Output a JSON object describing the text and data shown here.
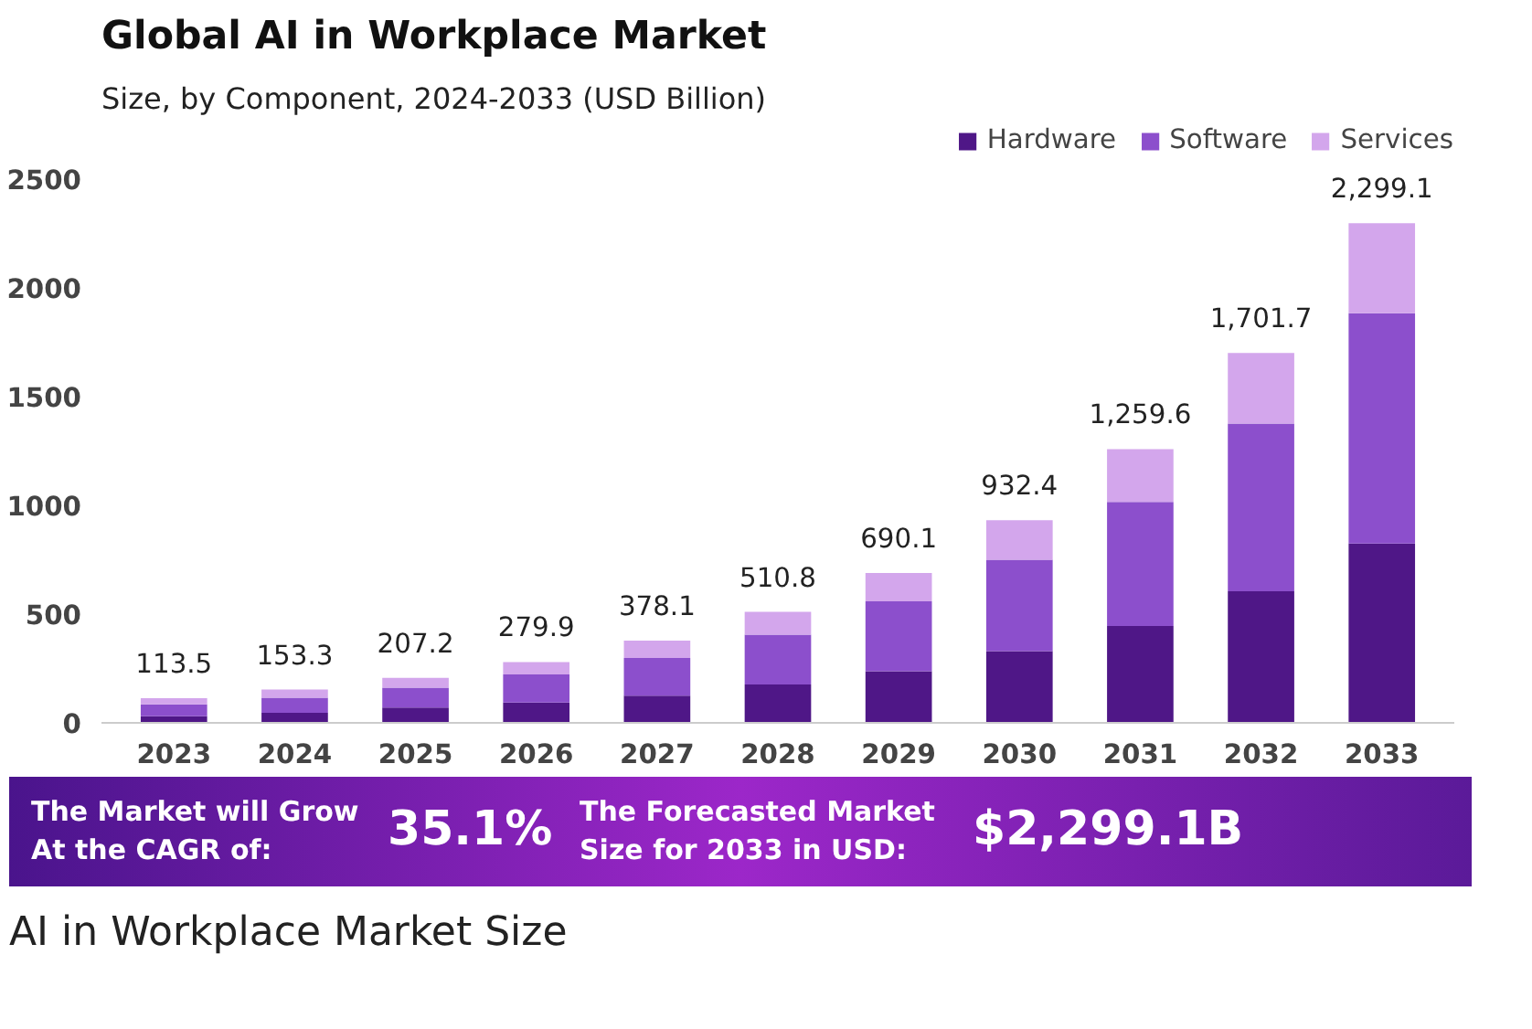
{
  "chart_data": {
    "type": "bar",
    "title": "Global AI in Workplace Market",
    "subtitle": "Size, by Component, 2024-2033 (USD Billion)",
    "categories": [
      "2023",
      "2024",
      "2025",
      "2026",
      "2027",
      "2028",
      "2029",
      "2030",
      "2031",
      "2032",
      "2033"
    ],
    "stacked": true,
    "series": [
      {
        "name": "Hardware",
        "color": "#4f1787",
        "values": [
          30,
          46,
          70,
          94,
          125,
          177,
          238,
          330,
          446,
          605,
          825
        ]
      },
      {
        "name": "Software",
        "color": "#8c4fcc",
        "values": [
          55,
          70,
          92,
          129,
          174,
          229,
          321,
          421,
          571,
          772,
          1060
        ]
      },
      {
        "name": "Services",
        "color": "#d3a6ec",
        "values": [
          28.5,
          37.3,
          45.2,
          56.9,
          79.1,
          104.8,
          131.1,
          181.4,
          242.6,
          324.7,
          414.1
        ]
      }
    ],
    "totals": [
      "113.5",
      "153.3",
      "207.2",
      "279.9",
      "378.1",
      "510.8",
      "690.1",
      "932.4",
      "1,259.6",
      "1,701.7",
      "2,299.1"
    ],
    "ylim": [
      0,
      2750
    ],
    "yticks": [
      0,
      500,
      1000,
      1500,
      2000,
      2500
    ],
    "grid": false,
    "legend": "top right",
    "annotations": [
      "The Market will Grow At the CAGR of:",
      "35.1%",
      "The Forecasted Market Size for 2033 in USD:",
      "$2,299.1B",
      "AI in Workplace Market Size"
    ]
  }
}
